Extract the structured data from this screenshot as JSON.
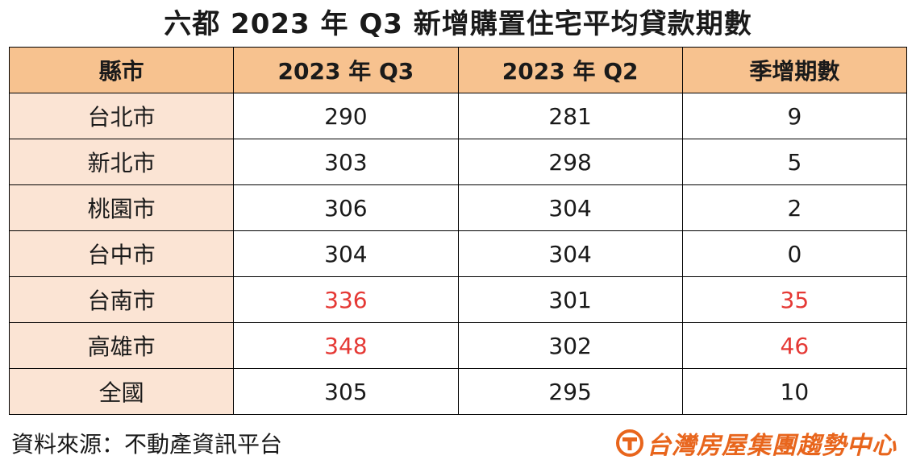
{
  "title": "六都 2023 年 Q3 新增購置住宅平均貸款期數",
  "table": {
    "headers": [
      "縣市",
      "2023 年 Q3",
      "2023 年 Q2",
      "季增期數"
    ],
    "rows": [
      {
        "city": "台北市",
        "q3": "290",
        "q2": "281",
        "change": "9",
        "q3_highlight": false,
        "change_highlight": false
      },
      {
        "city": "新北市",
        "q3": "303",
        "q2": "298",
        "change": "5",
        "q3_highlight": false,
        "change_highlight": false
      },
      {
        "city": "桃園市",
        "q3": "306",
        "q2": "304",
        "change": "2",
        "q3_highlight": false,
        "change_highlight": false
      },
      {
        "city": "台中市",
        "q3": "304",
        "q2": "304",
        "change": "0",
        "q3_highlight": false,
        "change_highlight": false
      },
      {
        "city": "台南市",
        "q3": "336",
        "q2": "301",
        "change": "35",
        "q3_highlight": true,
        "change_highlight": true
      },
      {
        "city": "高雄市",
        "q3": "348",
        "q2": "302",
        "change": "46",
        "q3_highlight": true,
        "change_highlight": true
      },
      {
        "city": "全國",
        "q3": "305",
        "q2": "295",
        "change": "10",
        "q3_highlight": false,
        "change_highlight": false
      }
    ]
  },
  "source": "資料來源：不動產資訊平台",
  "logo": {
    "text": "台灣房屋集團趨勢中心",
    "icon": "tw-housing-logo-icon"
  },
  "colors": {
    "header_bg": "#f7c28f",
    "city_bg": "#fbe4d4",
    "highlight_text": "#e53935",
    "logo": "#e8651c"
  }
}
